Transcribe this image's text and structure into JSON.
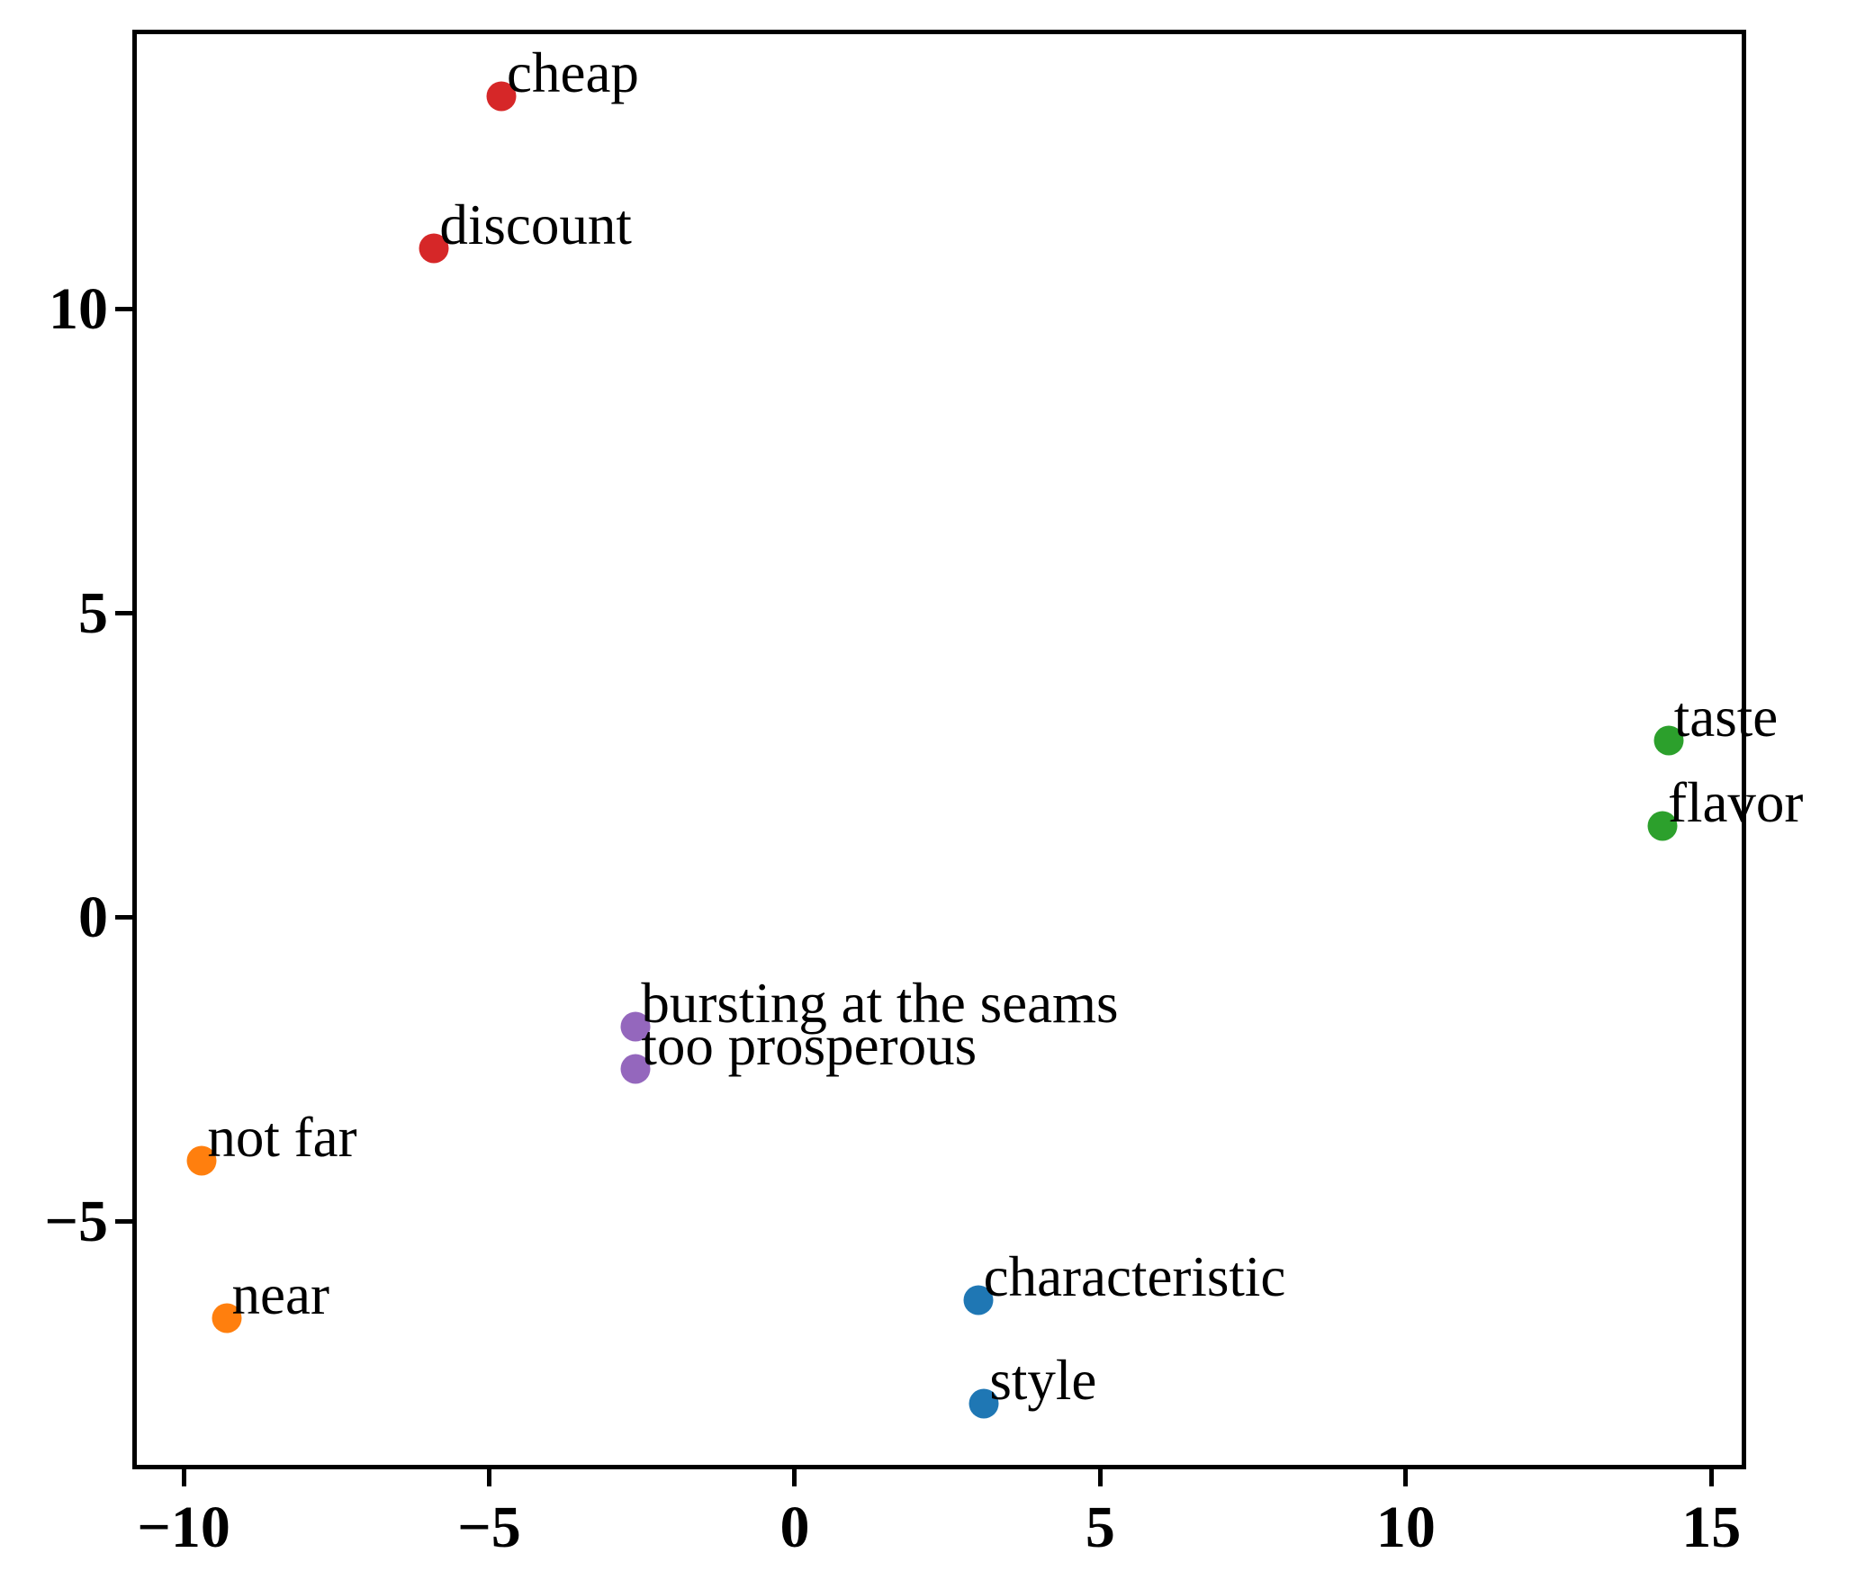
{
  "figure": {
    "background_color": "#ffffff",
    "spine_color": "#000000",
    "text_color": "#000000"
  },
  "chart_data": {
    "type": "scatter",
    "title": "",
    "xlabel": "",
    "ylabel": "",
    "grid": false,
    "legend": "none",
    "xlim": [
      -10.84,
      15.57
    ],
    "ylim": [
      -9.08,
      14.59
    ],
    "x_ticks": [
      -10,
      -5,
      0,
      5,
      10,
      15
    ],
    "y_ticks": [
      -5,
      0,
      5,
      10
    ],
    "point_groups": [
      {
        "name": "red-cluster",
        "color": "#d62728",
        "points": [
          {
            "label": "cheap",
            "x": -4.8,
            "y": 13.5
          },
          {
            "label": "discount",
            "x": -5.9,
            "y": 11.0
          }
        ]
      },
      {
        "name": "green-cluster",
        "color": "#2ca02c",
        "points": [
          {
            "label": "taste",
            "x": 14.3,
            "y": 2.9
          },
          {
            "label": "flavor",
            "x": 14.2,
            "y": 1.5
          }
        ]
      },
      {
        "name": "purple-cluster",
        "color": "#9467bd",
        "points": [
          {
            "label": "bursting at the seams",
            "x": -2.6,
            "y": -1.8
          },
          {
            "label": "too prosperous",
            "x": -2.6,
            "y": -2.5
          }
        ]
      },
      {
        "name": "orange-cluster",
        "color": "#ff7f0e",
        "points": [
          {
            "label": "not far",
            "x": -9.7,
            "y": -4.0
          },
          {
            "label": "near",
            "x": -9.3,
            "y": -6.6
          }
        ]
      },
      {
        "name": "blue-cluster",
        "color": "#1f77b4",
        "points": [
          {
            "label": "characteristic",
            "x": 3.0,
            "y": -6.3
          },
          {
            "label": "style",
            "x": 3.1,
            "y": -8.0
          }
        ]
      }
    ]
  }
}
